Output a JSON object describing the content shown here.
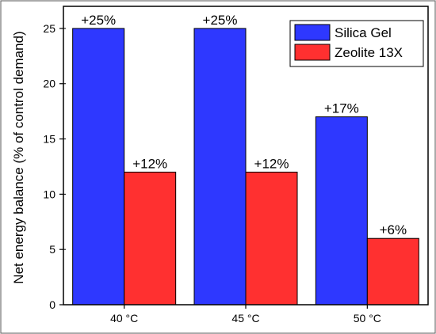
{
  "chart_data": {
    "type": "bar",
    "categories": [
      "40 °C",
      "45 °C",
      "50 °C"
    ],
    "series": [
      {
        "name": "Silica Gel",
        "values": [
          25,
          25,
          17
        ],
        "labels": [
          "+25%",
          "+25%",
          "+17%"
        ],
        "color": "#2e38ff"
      },
      {
        "name": "Zeolite 13X",
        "values": [
          12,
          12,
          6
        ],
        "labels": [
          "+12%",
          "+12%",
          "+6%"
        ],
        "color": "#ff3030"
      }
    ],
    "title": "",
    "xlabel": "",
    "ylabel": "Net energy balance (% of control demand)",
    "ylim": [
      0,
      27
    ],
    "yticks": [
      "0",
      "5",
      "10",
      "15",
      "20",
      "25"
    ],
    "grid": false,
    "legend_position": "top-right"
  }
}
